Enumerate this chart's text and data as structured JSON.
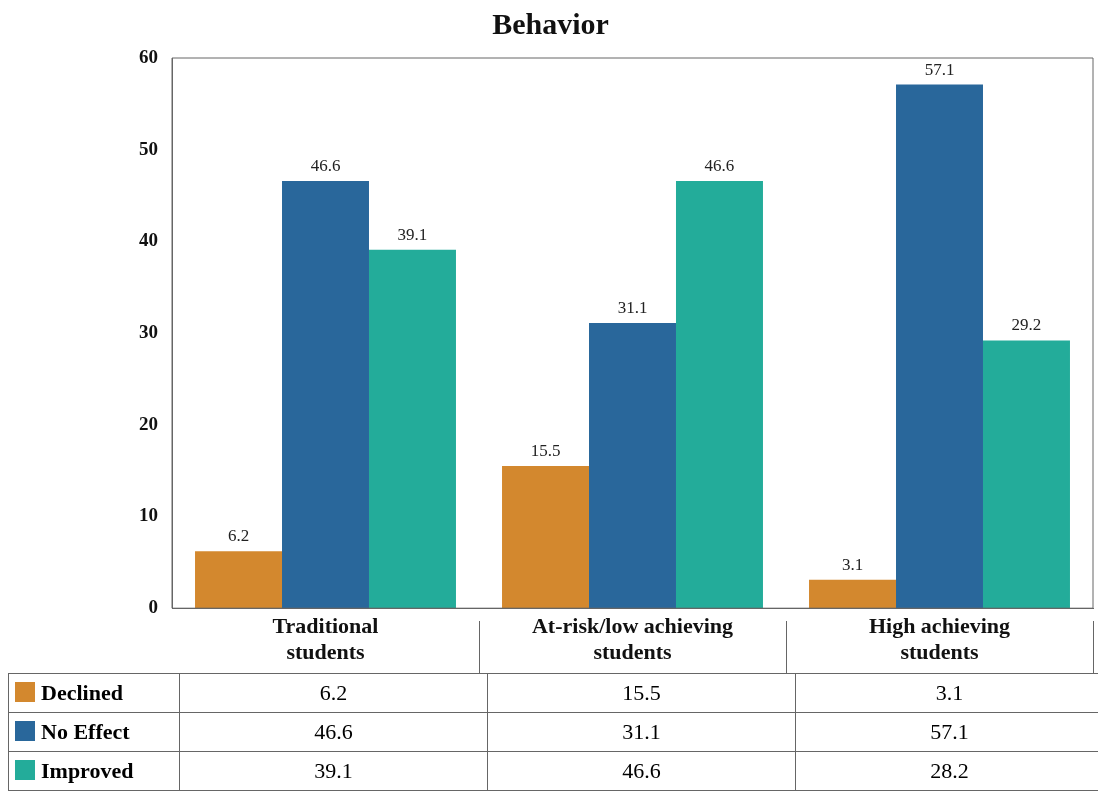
{
  "chart_data": {
    "type": "bar",
    "title": "Behavior",
    "categories": [
      "Traditional students",
      "At-risk/low achieving students",
      "High achieving students"
    ],
    "series": [
      {
        "name": "Declined",
        "color": "#d3882e",
        "values": [
          6.2,
          15.5,
          3.1
        ],
        "value_labels": [
          "6.2",
          "15.5",
          "3.1"
        ]
      },
      {
        "name": "No Effect",
        "color": "#29679b",
        "values": [
          46.6,
          31.1,
          57.1
        ],
        "value_labels": [
          "46.6",
          "31.1",
          "57.1"
        ]
      },
      {
        "name": "Improved",
        "color": "#23ac9a",
        "values": [
          39.1,
          46.6,
          29.2
        ],
        "value_labels": [
          "39.1",
          "46.6",
          "29.2"
        ]
      }
    ],
    "annotations": [
      "6.2",
      "15.5",
      "3.1",
      "46.6",
      "31.1",
      "57.1",
      "39.1",
      "46.6",
      "28.2"
    ],
    "ylim": [
      0,
      60
    ],
    "yticks": [
      0,
      10,
      20,
      30,
      40,
      50,
      60
    ],
    "grid": false,
    "legend": "bottom"
  }
}
